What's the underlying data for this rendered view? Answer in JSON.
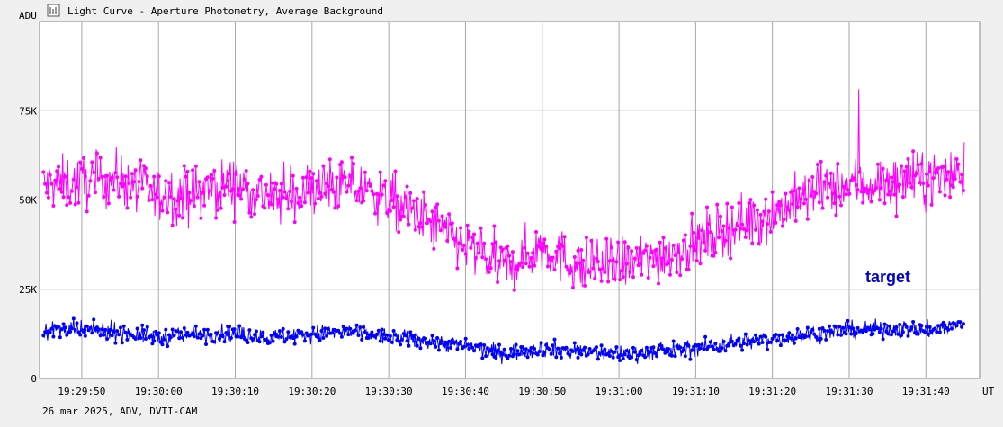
{
  "window": {
    "title": "Light Curve - Aperture Photometry, Average Background",
    "footer": "26 mar 2025, ADV, DVTI-CAM"
  },
  "colors": {
    "background": "#f0f0f0",
    "plot_area": "#ffffff",
    "grid": "#a8a8a8",
    "series_magenta": "#ff00ff",
    "series_blue": "#0000ff",
    "legend_text": "#0000cc"
  },
  "chart_data": {
    "type": "line",
    "title": "Light Curve - Aperture Photometry, Average Background",
    "ylabel": "ADU",
    "xlabel": "UT",
    "ylim": [
      0,
      100000
    ],
    "y_ticks": [
      0,
      25000,
      50000,
      75000
    ],
    "y_tick_labels": [
      "0",
      "25K",
      "50K",
      "75K"
    ],
    "x_tick_labels": [
      "19:29:50",
      "19:30:00",
      "19:30:10",
      "19:30:20",
      "19:30:30",
      "19:30:40",
      "19:30:50",
      "19:31:00",
      "19:31:10",
      "19:31:20",
      "19:31:30",
      "19:31:40"
    ],
    "x_range": [
      "19:29:44.5",
      "19:31:47.0"
    ],
    "grid": true,
    "legend_position": "right",
    "series": [
      {
        "name": "",
        "color": "#ff00ff",
        "trend_x": [
          "19:29:45",
          "19:29:50",
          "19:29:55",
          "19:30:00",
          "19:30:05",
          "19:30:10",
          "19:30:15",
          "19:30:20",
          "19:30:25",
          "19:30:30",
          "19:30:35",
          "19:30:40",
          "19:30:45",
          "19:30:50",
          "19:30:55",
          "19:31:00",
          "19:31:05",
          "19:31:10",
          "19:31:15",
          "19:31:20",
          "19:31:25",
          "19:31:30",
          "19:31:35",
          "19:31:40",
          "19:31:45"
        ],
        "trend_y": [
          54000,
          55000,
          56000,
          51000,
          52000,
          55000,
          50000,
          53000,
          54000,
          50000,
          44000,
          37000,
          31000,
          37000,
          31000,
          32000,
          34000,
          38000,
          43000,
          46000,
          52000,
          54000,
          55000,
          56000,
          58000
        ],
        "point_count": 1100,
        "noise_amplitude": 5000,
        "y_max_observed": 81000,
        "y_min_observed": 21000
      },
      {
        "name": "target",
        "color": "#0000ff",
        "trend_x": [
          "19:29:45",
          "19:29:50",
          "19:29:55",
          "19:30:00",
          "19:30:05",
          "19:30:10",
          "19:30:15",
          "19:30:20",
          "19:30:25",
          "19:30:30",
          "19:30:35",
          "19:30:40",
          "19:30:45",
          "19:30:50",
          "19:30:55",
          "19:31:00",
          "19:31:05",
          "19:31:10",
          "19:31:15",
          "19:31:20",
          "19:31:25",
          "19:31:30",
          "19:31:35",
          "19:31:40",
          "19:31:45"
        ],
        "trend_y": [
          13500,
          13500,
          13000,
          11500,
          12500,
          12500,
          11500,
          12500,
          13000,
          11500,
          10500,
          9000,
          7000,
          8500,
          7500,
          7000,
          7500,
          8500,
          10000,
          11000,
          12500,
          13500,
          14000,
          13500,
          15000
        ],
        "point_count": 1100,
        "noise_amplitude": 1600,
        "y_max_observed": 20000,
        "y_min_observed": 4000
      }
    ]
  }
}
